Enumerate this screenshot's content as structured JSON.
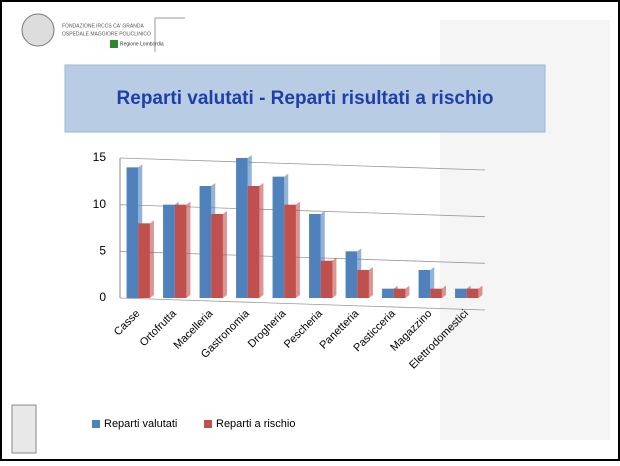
{
  "header": {
    "line1": "FONDAZIONE IRCCS CA' GRANDA",
    "line2": "OSPEDALE MAGGIORE POLICLINICO",
    "region": "Regione Lombardia"
  },
  "chart_data": {
    "type": "bar",
    "title": "Reparti valutati - Reparti risultati a rischio",
    "categories": [
      "Casse",
      "Ortofrutta",
      "Macelleria",
      "Gastronomia",
      "Drogheria",
      "Pescheria",
      "Panetteria",
      "Pasticceria",
      "Magazzino",
      "Elettrodomestici"
    ],
    "series": [
      {
        "name": "Reparti valutati",
        "color": "#4f81bd",
        "values": [
          14,
          10,
          12,
          15,
          13,
          9,
          5,
          1,
          3,
          1
        ]
      },
      {
        "name": "Reparti a rischio",
        "color": "#c0504d",
        "values": [
          8,
          10,
          9,
          12,
          10,
          4,
          3,
          1,
          1,
          1
        ]
      }
    ],
    "ylim": [
      0,
      15
    ],
    "yticks": [
      0,
      5,
      10,
      15
    ],
    "grid": true,
    "legend": "bottom"
  }
}
